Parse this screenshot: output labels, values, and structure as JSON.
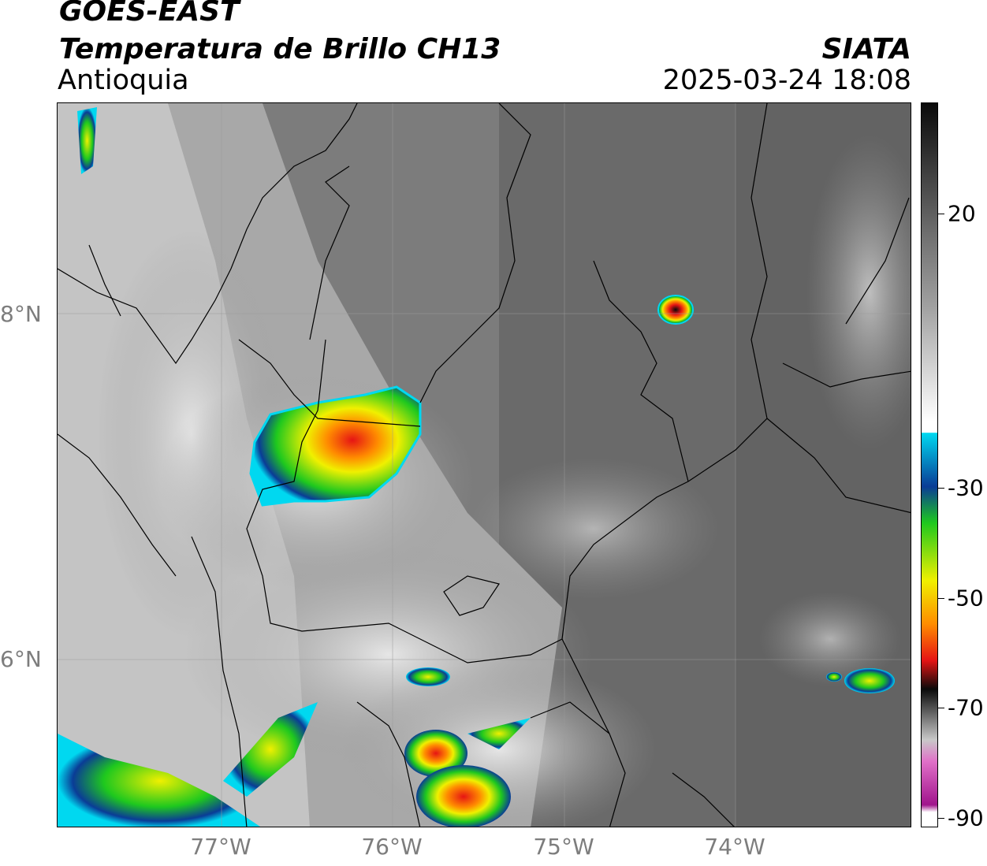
{
  "header": {
    "satellite": "GOES-EAST",
    "product": "Temperatura de Brillo CH13",
    "region": "Antioquia",
    "organization": "SIATA",
    "timestamp": "2025-03-24 18:08"
  },
  "map": {
    "lat_labels": [
      "8°N",
      "6°N"
    ],
    "lon_labels": [
      "77°W",
      "76°W",
      "75°W",
      "74°W"
    ]
  },
  "colorbar": {
    "labels": [
      "20",
      "-30",
      "-50",
      "-70",
      "-90"
    ],
    "colors": {
      "warm_gray": "#6e6e6e",
      "white": "#ffffff",
      "cyan": "#00d8f0",
      "blue": "#0a3c96",
      "green": "#1ec81e",
      "yellow": "#f0f000",
      "orange": "#ff8c00",
      "red": "#e61414",
      "black": "#0a0a0a",
      "magenta": "#a0148c"
    }
  }
}
